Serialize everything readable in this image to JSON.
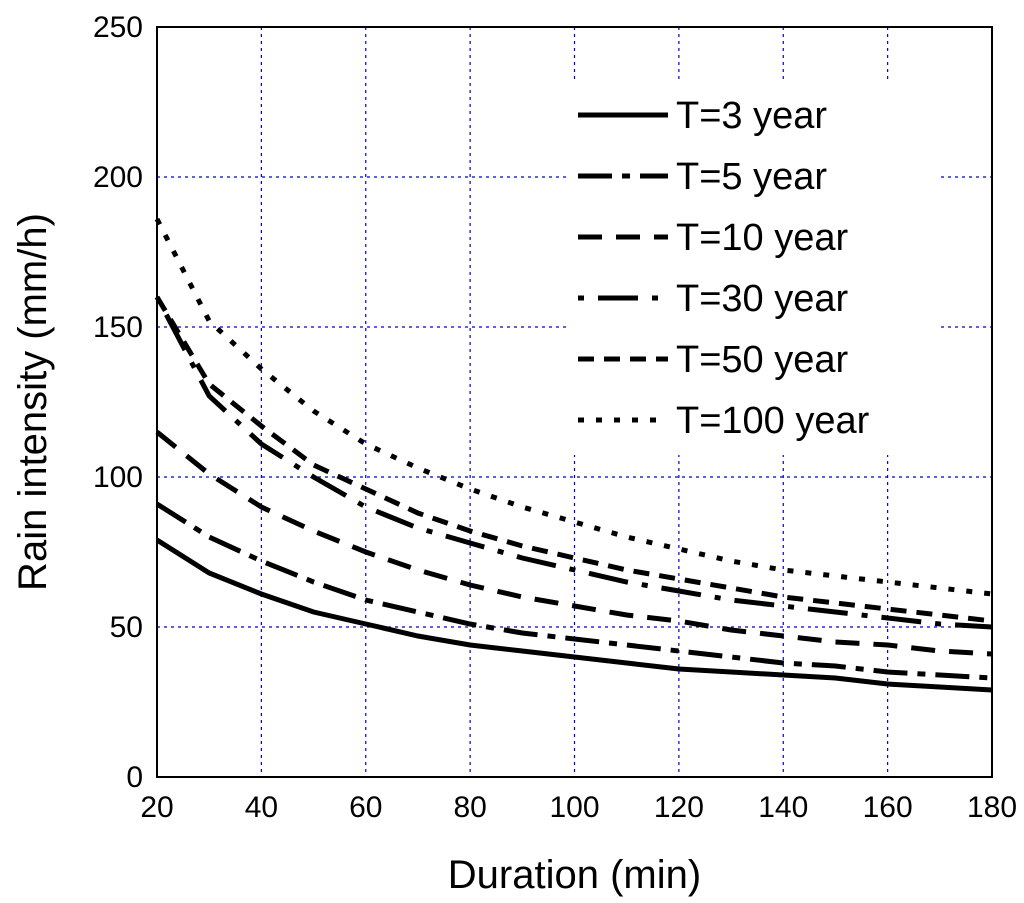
{
  "chart_data": {
    "type": "line",
    "title": "",
    "xlabel": "Duration (min)",
    "ylabel": "Rain intensity (mm/h)",
    "xlim": [
      20,
      180
    ],
    "ylim": [
      0,
      250
    ],
    "xticks": [
      "20",
      "40",
      "60",
      "80",
      "100",
      "120",
      "140",
      "160",
      "180"
    ],
    "yticks": [
      "0",
      "50",
      "100",
      "150",
      "200",
      "250"
    ],
    "grid": true,
    "legend_position": "top-right",
    "x": [
      20,
      30,
      40,
      50,
      60,
      70,
      80,
      90,
      100,
      110,
      120,
      130,
      140,
      150,
      160,
      170,
      180
    ],
    "series": [
      {
        "name": "T=3 year",
        "style": "solid",
        "values": [
          79,
          68,
          61,
          55,
          51,
          47,
          44,
          42,
          40,
          38,
          36,
          35,
          34,
          33,
          31,
          30,
          29
        ]
      },
      {
        "name": "T=5 year",
        "style": "dashdot",
        "values": [
          91,
          80,
          72,
          65,
          59,
          55,
          51,
          48,
          46,
          44,
          42,
          40,
          38,
          37,
          35,
          34,
          33
        ]
      },
      {
        "name": "T=10 year",
        "style": "dashed",
        "values": [
          115,
          101,
          90,
          82,
          75,
          69,
          64,
          60,
          57,
          54,
          52,
          49,
          47,
          45,
          44,
          42,
          41
        ]
      },
      {
        "name": "T=30 year",
        "style": "dotdash",
        "values": [
          160,
          127,
          111,
          100,
          90,
          83,
          78,
          73,
          69,
          65,
          62,
          59,
          57,
          55,
          53,
          51,
          50
        ]
      },
      {
        "name": "T=50 year",
        "style": "shortdash",
        "values": [
          160,
          131,
          117,
          104,
          96,
          88,
          82,
          77,
          73,
          69,
          66,
          63,
          60,
          58,
          56,
          54,
          52
        ]
      },
      {
        "name": "T=100 year",
        "style": "dotted",
        "values": [
          186,
          152,
          136,
          122,
          111,
          103,
          96,
          90,
          85,
          80,
          76,
          72,
          69,
          67,
          65,
          63,
          61
        ]
      }
    ]
  }
}
